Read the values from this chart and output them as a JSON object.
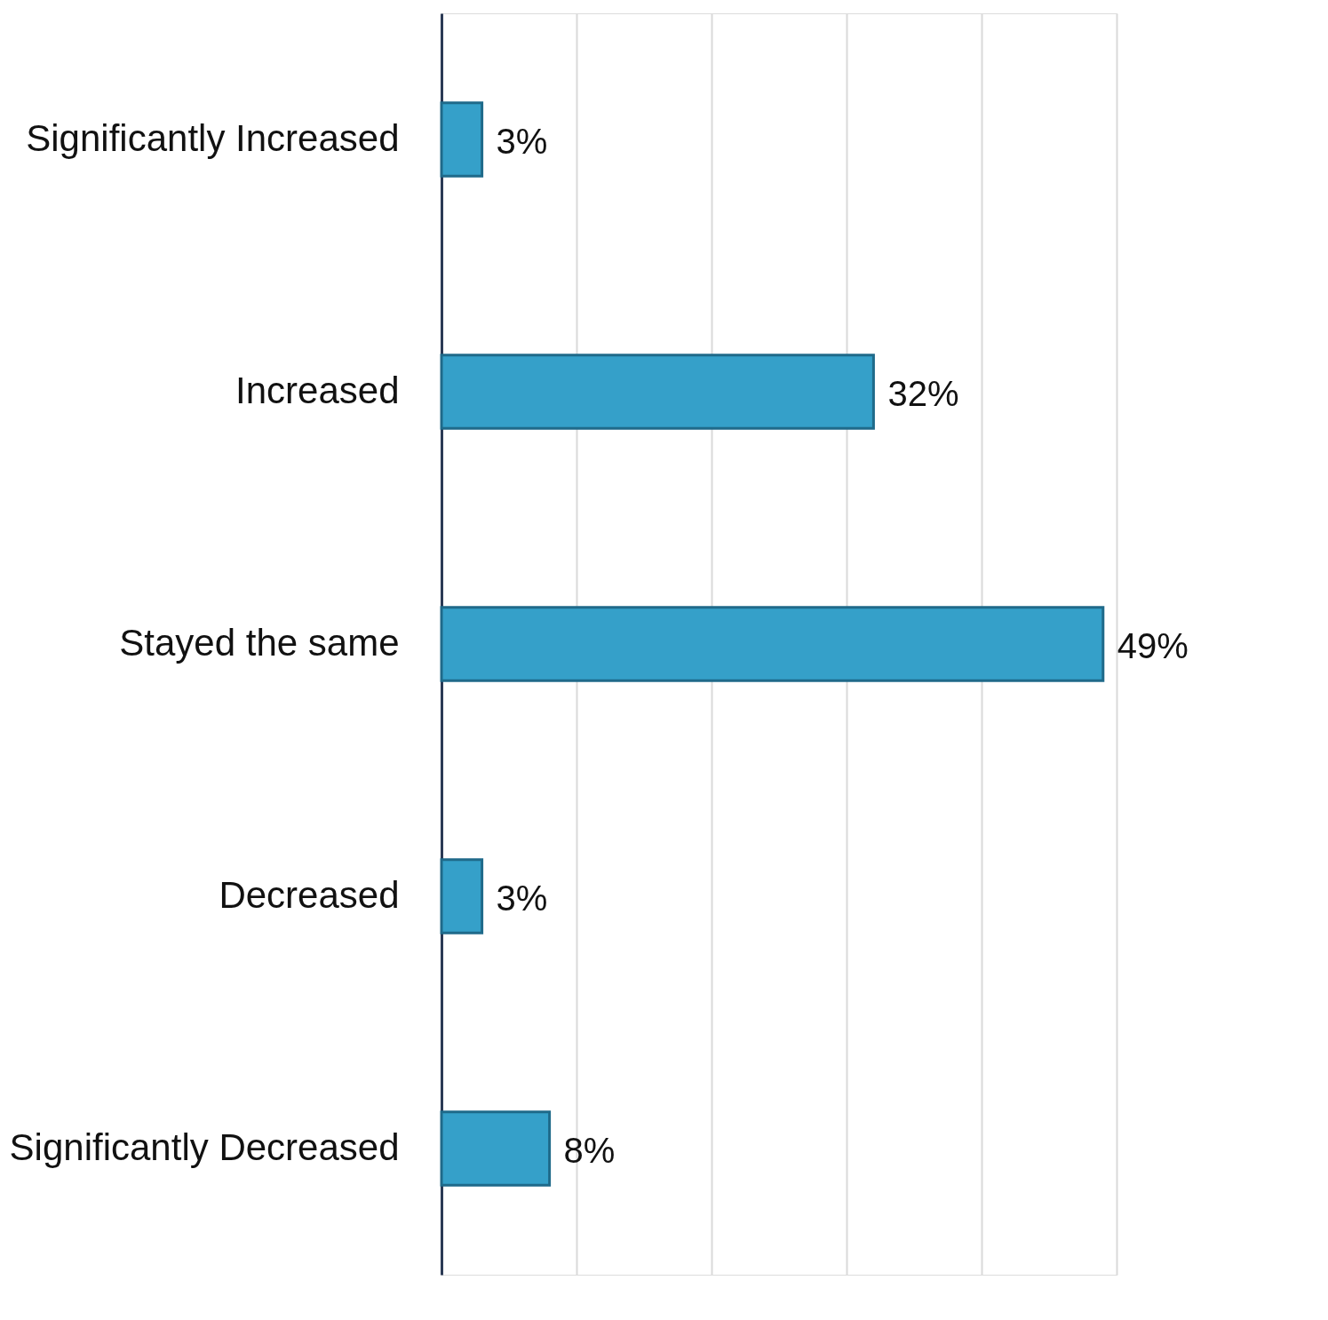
{
  "chart_data": {
    "type": "bar",
    "orientation": "horizontal",
    "categories": [
      "Significantly Increased",
      "Increased",
      "Stayed the same",
      "Decreased",
      "Significantly Decreased"
    ],
    "values": [
      3,
      32,
      49,
      3,
      8
    ],
    "value_labels": [
      "3%",
      "32%",
      "49%",
      "3%",
      "8%"
    ],
    "color": "#35a0c9",
    "xlim": [
      0,
      50
    ],
    "xticks": [
      {
        "value": 0,
        "label": null
      },
      {
        "value": 10,
        "label": null
      },
      {
        "value": 20,
        "label": null
      },
      {
        "value": 30,
        "label": null
      },
      {
        "value": 40,
        "label": null
      },
      {
        "value": 50,
        "label": null
      }
    ],
    "grid": "x",
    "tick_labels": "y"
  }
}
